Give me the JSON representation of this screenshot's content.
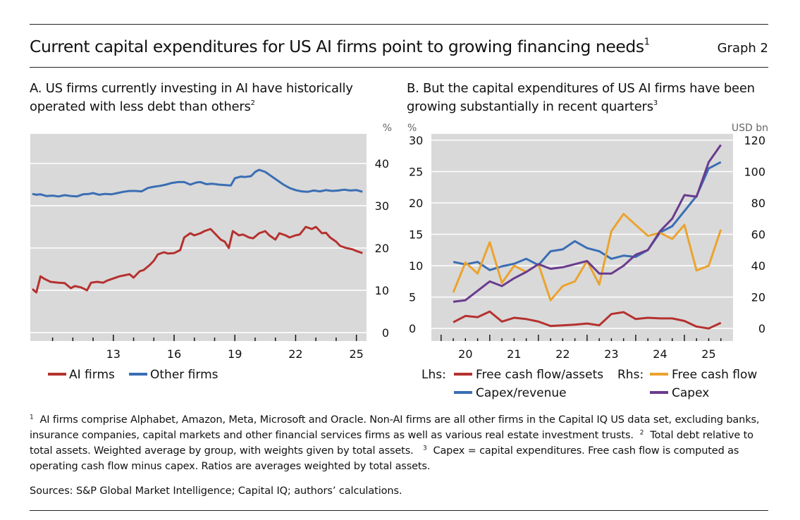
{
  "header": {
    "title": "Current capital expenditures for US AI firms point to growing financing needs",
    "title_note": "1",
    "graph_label": "Graph 2"
  },
  "panel_a": {
    "subtitle_line1": "A. US firms currently investing in AI have historically",
    "subtitle_line2": "operated with less debt than others",
    "subtitle_note": "2",
    "unit_right": "%"
  },
  "panel_b": {
    "subtitle_line1": "B. But the capital expenditures of US AI firms have been",
    "subtitle_line2": "growing substantially in recent quarters",
    "subtitle_note": "3",
    "unit_left": "%",
    "unit_right": "USD bn",
    "legend_lhs_label": "Lhs:",
    "legend_rhs_label": "Rhs:"
  },
  "colors": {
    "red": "#b5312f",
    "blue": "#3a6eb4",
    "orange": "#eba32e",
    "purple": "#6a3b8e",
    "plot_bg": "#d9d9d9"
  },
  "chart_data": [
    {
      "type": "line",
      "x_tick_labels": [
        "13",
        "16",
        "19",
        "22",
        "25"
      ],
      "x_tick_positions": [
        13,
        16,
        19,
        22,
        25
      ],
      "xlim": [
        8.9,
        25.5
      ],
      "ylim": [
        -2,
        47
      ],
      "y_ticks": [
        0,
        10,
        20,
        30,
        40
      ],
      "y_axis": "right",
      "grid": "horizontal",
      "legend_position": "bottom",
      "series": [
        {
          "name": "AI firms",
          "color": "#b5312f",
          "points": [
            [
              9.0,
              10.3
            ],
            [
              9.2,
              9.5
            ],
            [
              9.4,
              13.3
            ],
            [
              9.6,
              12.7
            ],
            [
              9.9,
              12.0
            ],
            [
              10.3,
              11.8
            ],
            [
              10.6,
              11.7
            ],
            [
              10.9,
              10.5
            ],
            [
              11.1,
              11.0
            ],
            [
              11.4,
              10.7
            ],
            [
              11.7,
              10.0
            ],
            [
              11.9,
              11.8
            ],
            [
              12.2,
              12.0
            ],
            [
              12.5,
              11.8
            ],
            [
              12.7,
              12.3
            ],
            [
              13.0,
              12.8
            ],
            [
              13.3,
              13.3
            ],
            [
              13.5,
              13.5
            ],
            [
              13.8,
              13.8
            ],
            [
              14.0,
              13.0
            ],
            [
              14.3,
              14.5
            ],
            [
              14.5,
              14.8
            ],
            [
              14.8,
              16.0
            ],
            [
              15.0,
              17.0
            ],
            [
              15.2,
              18.5
            ],
            [
              15.5,
              19.0
            ],
            [
              15.7,
              18.7
            ],
            [
              16.0,
              18.8
            ],
            [
              16.3,
              19.5
            ],
            [
              16.5,
              22.5
            ],
            [
              16.8,
              23.5
            ],
            [
              17.0,
              23.0
            ],
            [
              17.3,
              23.5
            ],
            [
              17.5,
              24.0
            ],
            [
              17.8,
              24.5
            ],
            [
              18.0,
              23.5
            ],
            [
              18.3,
              22.0
            ],
            [
              18.5,
              21.5
            ],
            [
              18.7,
              20.0
            ],
            [
              18.9,
              24.0
            ],
            [
              19.2,
              23.0
            ],
            [
              19.4,
              23.2
            ],
            [
              19.7,
              22.5
            ],
            [
              19.9,
              22.3
            ],
            [
              20.2,
              23.5
            ],
            [
              20.5,
              24.0
            ],
            [
              20.7,
              23.0
            ],
            [
              21.0,
              22.0
            ],
            [
              21.2,
              23.5
            ],
            [
              21.5,
              23.0
            ],
            [
              21.7,
              22.5
            ],
            [
              22.0,
              23.0
            ],
            [
              22.2,
              23.2
            ],
            [
              22.5,
              25.0
            ],
            [
              22.8,
              24.5
            ],
            [
              23.0,
              25.0
            ],
            [
              23.3,
              23.5
            ],
            [
              23.5,
              23.6
            ],
            [
              23.7,
              22.5
            ],
            [
              24.0,
              21.5
            ],
            [
              24.2,
              20.5
            ],
            [
              24.5,
              20.0
            ],
            [
              24.8,
              19.7
            ],
            [
              25.0,
              19.3
            ],
            [
              25.3,
              18.8
            ]
          ]
        },
        {
          "name": "Other firms",
          "color": "#3a6eb4",
          "points": [
            [
              9.0,
              32.8
            ],
            [
              9.2,
              32.6
            ],
            [
              9.4,
              32.7
            ],
            [
              9.7,
              32.3
            ],
            [
              10.0,
              32.4
            ],
            [
              10.3,
              32.2
            ],
            [
              10.6,
              32.5
            ],
            [
              10.9,
              32.3
            ],
            [
              11.2,
              32.2
            ],
            [
              11.5,
              32.7
            ],
            [
              11.8,
              32.8
            ],
            [
              12.0,
              33.0
            ],
            [
              12.3,
              32.6
            ],
            [
              12.6,
              32.8
            ],
            [
              12.9,
              32.7
            ],
            [
              13.2,
              33.0
            ],
            [
              13.5,
              33.3
            ],
            [
              13.8,
              33.5
            ],
            [
              14.1,
              33.5
            ],
            [
              14.4,
              33.4
            ],
            [
              14.7,
              34.2
            ],
            [
              15.0,
              34.5
            ],
            [
              15.3,
              34.7
            ],
            [
              15.6,
              35.0
            ],
            [
              15.9,
              35.4
            ],
            [
              16.2,
              35.6
            ],
            [
              16.5,
              35.6
            ],
            [
              16.8,
              35.0
            ],
            [
              17.1,
              35.5
            ],
            [
              17.3,
              35.6
            ],
            [
              17.6,
              35.1
            ],
            [
              17.9,
              35.2
            ],
            [
              18.2,
              35.0
            ],
            [
              18.5,
              34.9
            ],
            [
              18.8,
              34.8
            ],
            [
              19.0,
              36.5
            ],
            [
              19.3,
              36.9
            ],
            [
              19.5,
              36.8
            ],
            [
              19.8,
              37.0
            ],
            [
              20.0,
              38.0
            ],
            [
              20.2,
              38.5
            ],
            [
              20.5,
              38.0
            ],
            [
              20.8,
              37.0
            ],
            [
              21.1,
              36.0
            ],
            [
              21.4,
              35.0
            ],
            [
              21.7,
              34.2
            ],
            [
              22.0,
              33.7
            ],
            [
              22.3,
              33.4
            ],
            [
              22.6,
              33.3
            ],
            [
              22.9,
              33.6
            ],
            [
              23.2,
              33.4
            ],
            [
              23.5,
              33.7
            ],
            [
              23.8,
              33.5
            ],
            [
              24.1,
              33.6
            ],
            [
              24.4,
              33.8
            ],
            [
              24.7,
              33.6
            ],
            [
              25.0,
              33.7
            ],
            [
              25.3,
              33.3
            ]
          ]
        }
      ]
    },
    {
      "type": "line",
      "x_tick_labels": [
        "20",
        "21",
        "22",
        "23",
        "24",
        "25"
      ],
      "x_tick_positions": [
        20,
        21,
        22,
        23,
        24,
        25
      ],
      "xlim": [
        19.3,
        25.5
      ],
      "ylim_left": [
        -2,
        31
      ],
      "y_ticks_left": [
        0,
        5,
        10,
        15,
        20,
        25,
        30
      ],
      "ylim_right": [
        -8,
        124
      ],
      "y_ticks_right": [
        0,
        20,
        40,
        60,
        80,
        100,
        120
      ],
      "grid": "horizontal",
      "legend_position": "bottom",
      "series": [
        {
          "name": "Free cash flow/assets",
          "axis": "left",
          "color": "#b5312f",
          "points": [
            [
              19.75,
              1.0
            ],
            [
              20.0,
              2.0
            ],
            [
              20.25,
              1.8
            ],
            [
              20.5,
              2.7
            ],
            [
              20.75,
              1.1
            ],
            [
              21.0,
              1.7
            ],
            [
              21.25,
              1.5
            ],
            [
              21.5,
              1.1
            ],
            [
              21.75,
              0.4
            ],
            [
              22.0,
              0.5
            ],
            [
              22.25,
              0.6
            ],
            [
              22.5,
              0.8
            ],
            [
              22.75,
              0.5
            ],
            [
              23.0,
              2.3
            ],
            [
              23.25,
              2.6
            ],
            [
              23.5,
              1.5
            ],
            [
              23.75,
              1.7
            ],
            [
              24.0,
              1.6
            ],
            [
              24.25,
              1.6
            ],
            [
              24.5,
              1.2
            ],
            [
              24.75,
              0.3
            ],
            [
              25.0,
              0.0
            ],
            [
              25.25,
              0.9
            ]
          ]
        },
        {
          "name": "Capex/revenue",
          "axis": "left",
          "color": "#3a6eb4",
          "points": [
            [
              19.75,
              10.6
            ],
            [
              20.0,
              10.2
            ],
            [
              20.25,
              10.6
            ],
            [
              20.5,
              9.3
            ],
            [
              20.75,
              9.9
            ],
            [
              21.0,
              10.3
            ],
            [
              21.25,
              11.1
            ],
            [
              21.5,
              10.1
            ],
            [
              21.75,
              12.3
            ],
            [
              22.0,
              12.6
            ],
            [
              22.25,
              13.9
            ],
            [
              22.5,
              12.8
            ],
            [
              22.75,
              12.3
            ],
            [
              23.0,
              11.1
            ],
            [
              23.25,
              11.6
            ],
            [
              23.5,
              11.4
            ],
            [
              23.75,
              12.5
            ],
            [
              24.0,
              15.3
            ],
            [
              24.25,
              16.3
            ],
            [
              24.5,
              18.7
            ],
            [
              24.75,
              21.1
            ],
            [
              25.0,
              25.5
            ],
            [
              25.25,
              26.5
            ]
          ]
        },
        {
          "name": "Free cash flow",
          "axis": "right",
          "color": "#eba32e",
          "points": [
            [
              19.75,
              23
            ],
            [
              20.0,
              42
            ],
            [
              20.25,
              35
            ],
            [
              20.5,
              55
            ],
            [
              20.75,
              29
            ],
            [
              21.0,
              40
            ],
            [
              21.25,
              36
            ],
            [
              21.5,
              41
            ],
            [
              21.75,
              18
            ],
            [
              22.0,
              27
            ],
            [
              22.25,
              30
            ],
            [
              22.5,
              43
            ],
            [
              22.75,
              28
            ],
            [
              23.0,
              62
            ],
            [
              23.25,
              73
            ],
            [
              23.5,
              66
            ],
            [
              23.75,
              59
            ],
            [
              24.0,
              61
            ],
            [
              24.25,
              57
            ],
            [
              24.5,
              66
            ],
            [
              24.75,
              37
            ],
            [
              25.0,
              40
            ],
            [
              25.25,
              63
            ]
          ]
        },
        {
          "name": "Capex",
          "axis": "right",
          "color": "#6a3b8e",
          "points": [
            [
              19.75,
              17
            ],
            [
              20.0,
              18
            ],
            [
              20.25,
              24
            ],
            [
              20.5,
              30
            ],
            [
              20.75,
              27
            ],
            [
              21.0,
              32
            ],
            [
              21.25,
              36
            ],
            [
              21.5,
              41
            ],
            [
              21.75,
              38
            ],
            [
              22.0,
              39
            ],
            [
              22.25,
              41
            ],
            [
              22.5,
              43
            ],
            [
              22.75,
              35
            ],
            [
              23.0,
              35
            ],
            [
              23.25,
              40
            ],
            [
              23.5,
              47
            ],
            [
              23.75,
              50
            ],
            [
              24.0,
              62
            ],
            [
              24.25,
              70
            ],
            [
              24.5,
              85
            ],
            [
              24.75,
              84
            ],
            [
              25.0,
              106
            ],
            [
              25.25,
              117
            ]
          ]
        }
      ]
    }
  ],
  "footnotes": {
    "n1_mark": "1",
    "n1_text": "AI firms comprise Alphabet, Amazon, Meta, Microsoft and Oracle. Non-AI firms are all other firms in the Capital IQ US data set, excluding banks, insurance companies, capital markets and other financial services firms as well as various real estate investment trusts.",
    "n2_mark": "2",
    "n2_text": "Total debt relative to total assets. Weighted average by group, with weights given by total assets.",
    "n3_mark": "3",
    "n3_text": "Capex = capital expenditures. Free cash flow is computed as operating cash flow minus capex. Ratios are averages weighted by total assets."
  },
  "sources": "Sources: S&P Global Market Intelligence; Capital IQ; authors’ calculations."
}
